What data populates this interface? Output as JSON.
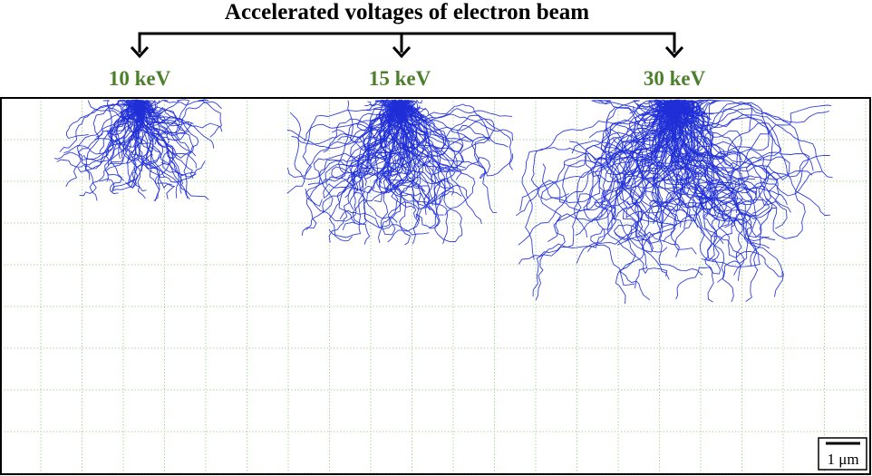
{
  "title": "Accelerated voltages of electron beam",
  "colors": {
    "label_green": "#4e7f2d",
    "trajectory_blue": "#1f2fd6",
    "grid_green": "#9cc98a",
    "bracket": "#000000"
  },
  "simulations": [
    {
      "label": "10 keV",
      "voltage_kev": 10,
      "relative_depth_um": 2.6
    },
    {
      "label": "15 keV",
      "voltage_kev": 15,
      "relative_depth_um": 4.0
    },
    {
      "label": "30 keV",
      "voltage_kev": 30,
      "relative_depth_um": 5.4
    }
  ],
  "scale_bar": {
    "label": "1 μm"
  }
}
